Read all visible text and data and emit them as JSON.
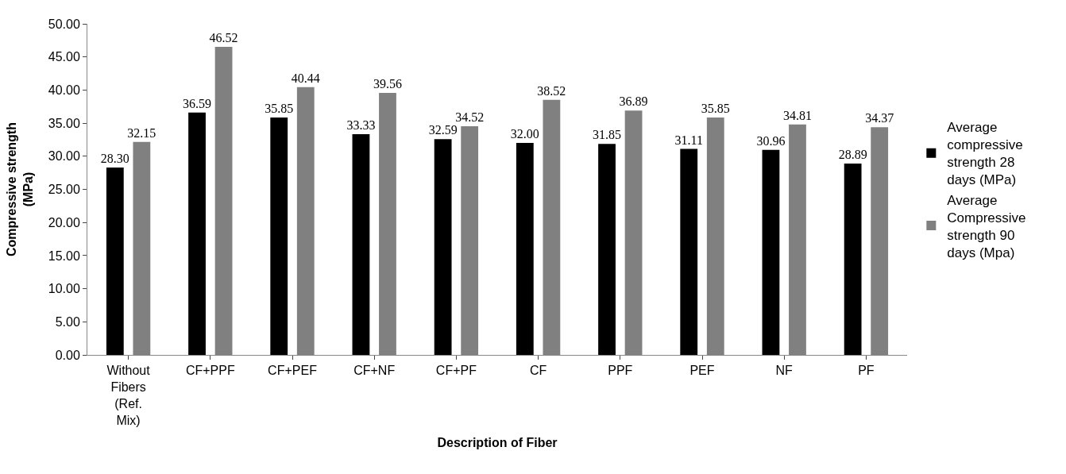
{
  "chart_data": {
    "type": "bar",
    "xlabel": "Description of Fiber",
    "ylabel": "Compressive strength (MPa)",
    "categories": [
      "Without Fibers (Ref. Mix)",
      "CF+PPF",
      "CF+PEF",
      "CF+NF",
      "CF+PF",
      "CF",
      "PPF",
      "PEF",
      "NF",
      "PF"
    ],
    "series": [
      {
        "name": "Average compressive strength 28 days (MPa)",
        "color": "#000000",
        "values": [
          28.3,
          36.59,
          35.85,
          33.33,
          32.59,
          32.0,
          31.85,
          31.11,
          30.96,
          28.89
        ],
        "value_labels": [
          "28.30",
          "36.59",
          "35.85",
          "33.33",
          "32.59",
          "32.00",
          "31.85",
          "31.11",
          "30.96",
          "28.89"
        ]
      },
      {
        "name": "Average Compressive strength 90 days (Mpa)",
        "color": "#808080",
        "values": [
          32.15,
          46.52,
          40.44,
          39.56,
          34.52,
          38.52,
          36.89,
          35.85,
          34.81,
          34.37
        ],
        "value_labels": [
          "32.15",
          "46.52",
          "40.44",
          "39.56",
          "34.52",
          "38.52",
          "36.89",
          "35.85",
          "34.81",
          "34.37"
        ]
      }
    ],
    "ylim": [
      0,
      50
    ],
    "yticks": [
      {
        "value": 0,
        "label": "0.00"
      },
      {
        "value": 5,
        "label": "5.00"
      },
      {
        "value": 10,
        "label": "10.00"
      },
      {
        "value": 15,
        "label": "15.00"
      },
      {
        "value": 20,
        "label": "20.00"
      },
      {
        "value": 25,
        "label": "25.00"
      },
      {
        "value": 30,
        "label": "30.00"
      },
      {
        "value": 35,
        "label": "35.00"
      },
      {
        "value": 40,
        "label": "40.00"
      },
      {
        "value": 45,
        "label": "45.00"
      },
      {
        "value": 50,
        "label": "50.00"
      }
    ],
    "legend": "right"
  }
}
